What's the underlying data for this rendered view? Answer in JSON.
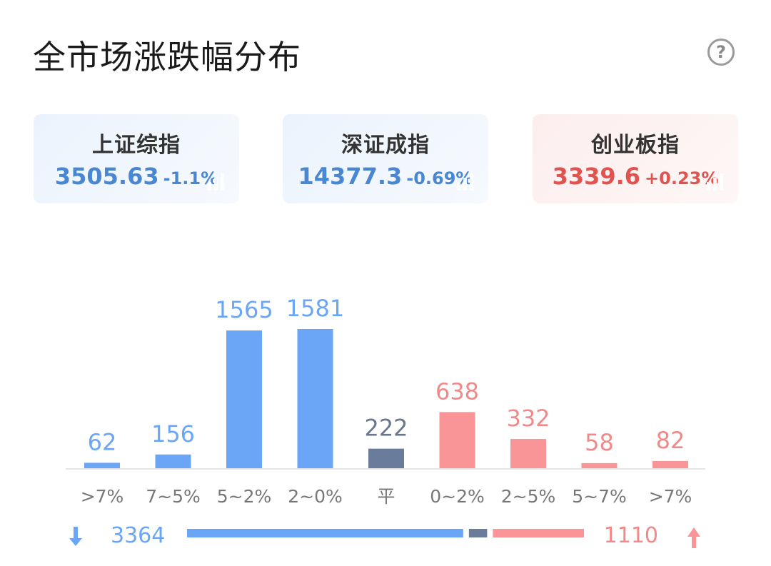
{
  "title": "全市场涨跌幅分布",
  "help_icon": "question-circle-icon",
  "indices": [
    {
      "name": "上证综指",
      "value": "3505.63",
      "change": "-1.1%",
      "color": "#4a87d3"
    },
    {
      "name": "深证成指",
      "value": "14377.3",
      "change": "-0.69%",
      "color": "#4a87d3"
    },
    {
      "name": "创业板指",
      "value": "3339.6",
      "change": "+0.23%",
      "color": "#e1534f"
    }
  ],
  "chart_data": {
    "type": "bar",
    "categories": [
      ">7%",
      "7~5%",
      "5~2%",
      "2~0%",
      "平",
      "0~2%",
      "2~5%",
      "5~7%",
      ">7%"
    ],
    "values": [
      62,
      156,
      1565,
      1581,
      222,
      638,
      332,
      58,
      82
    ],
    "groups": [
      "down",
      "down",
      "down",
      "down",
      "flat",
      "up",
      "up",
      "up",
      "up"
    ],
    "colors": {
      "down": "#6aa6f5",
      "flat": "#6a7c9b",
      "up": "#f99596"
    },
    "label_colors": {
      "down": "#6aa6f5",
      "flat": "#69778c",
      "up": "#f08a8a"
    },
    "tick_color": "#777777",
    "grid": false,
    "ylim": [
      0,
      1581
    ]
  },
  "summary": {
    "down_total": "3364",
    "up_total": "1110",
    "down_icon": "arrow-down-icon",
    "up_icon": "arrow-up-icon",
    "down_count": 3364,
    "flat_count": 222,
    "up_count": 1110
  }
}
